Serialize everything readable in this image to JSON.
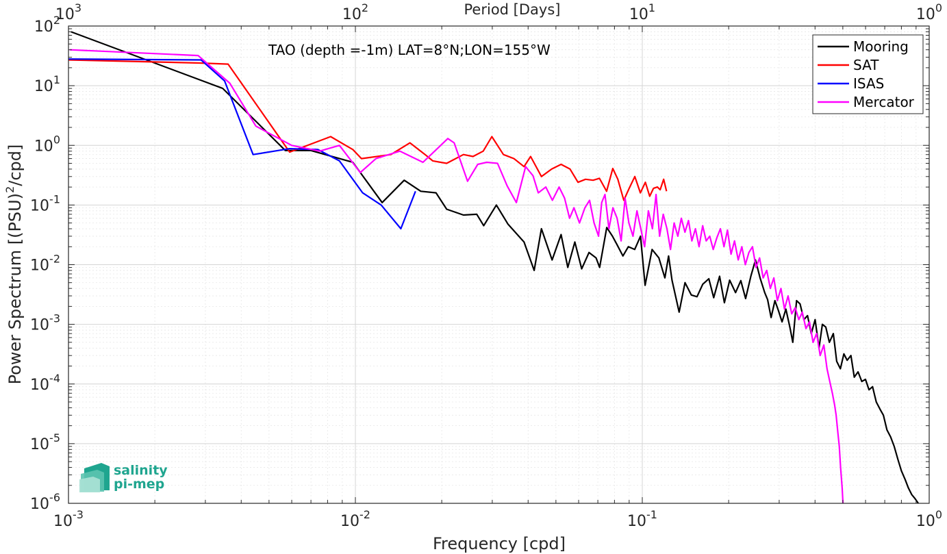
{
  "chart_data": {
    "type": "line",
    "title": "",
    "annotation": "TAO (depth =-1m) LAT=8°N;LON=155°W",
    "xlabel": "Frequency [cpd]",
    "ylabel": "Power Spectrum [(PSU)²/cpd]",
    "top_xlabel": "Period [Days]",
    "x_scale": "log",
    "y_scale": "log",
    "xlim": [
      0.001,
      1
    ],
    "ylim": [
      1e-06,
      100
    ],
    "grid": true,
    "legend_position": "top-right",
    "x_ticks": [
      {
        "base": "10",
        "exp": "-3"
      },
      {
        "base": "10",
        "exp": "-2"
      },
      {
        "base": "10",
        "exp": "-1"
      },
      {
        "base": "10",
        "exp": "0"
      }
    ],
    "y_ticks": [
      {
        "base": "10",
        "exp": "-6"
      },
      {
        "base": "10",
        "exp": "-5"
      },
      {
        "base": "10",
        "exp": "-4"
      },
      {
        "base": "10",
        "exp": "-3"
      },
      {
        "base": "10",
        "exp": "-2"
      },
      {
        "base": "10",
        "exp": "-1"
      },
      {
        "base": "10",
        "exp": "0"
      },
      {
        "base": "10",
        "exp": "1"
      },
      {
        "base": "10",
        "exp": "2"
      }
    ],
    "top_ticks": [
      {
        "base": "10",
        "exp": "3"
      },
      {
        "base": "10",
        "exp": "2"
      },
      {
        "base": "10",
        "exp": "1"
      },
      {
        "base": "10",
        "exp": "0"
      }
    ],
    "series": [
      {
        "name": "Mooring",
        "color": "#000000",
        "points": [
          [
            0.00102,
            80
          ],
          [
            0.00345,
            9
          ],
          [
            0.0057,
            0.82
          ],
          [
            0.007,
            0.82
          ],
          [
            0.0098,
            0.52
          ],
          [
            0.0124,
            0.11
          ],
          [
            0.0148,
            0.26
          ],
          [
            0.0169,
            0.17
          ],
          [
            0.0191,
            0.16
          ],
          [
            0.0208,
            0.085
          ],
          [
            0.0238,
            0.068
          ],
          [
            0.0265,
            0.07
          ],
          [
            0.028,
            0.045
          ],
          [
            0.031,
            0.1
          ],
          [
            0.034,
            0.048
          ],
          [
            0.0387,
            0.024
          ],
          [
            0.042,
            0.008
          ],
          [
            0.0445,
            0.04
          ],
          [
            0.0485,
            0.012
          ],
          [
            0.0521,
            0.032
          ],
          [
            0.055,
            0.009
          ],
          [
            0.0582,
            0.024
          ],
          [
            0.0615,
            0.0085
          ],
          [
            0.0652,
            0.016
          ],
          [
            0.069,
            0.013
          ],
          [
            0.071,
            0.009
          ],
          [
            0.0752,
            0.042
          ],
          [
            0.0787,
            0.03
          ],
          [
            0.0815,
            0.022
          ],
          [
            0.0856,
            0.014
          ],
          [
            0.0894,
            0.02
          ],
          [
            0.0941,
            0.018
          ],
          [
            0.0986,
            0.03
          ],
          [
            0.1023,
            0.0045
          ],
          [
            0.1082,
            0.018
          ],
          [
            0.1142,
            0.013
          ],
          [
            0.1199,
            0.006
          ],
          [
            0.1235,
            0.014
          ],
          [
            0.1269,
            0.0055
          ],
          [
            0.1344,
            0.0016
          ],
          [
            0.1409,
            0.005
          ],
          [
            0.1482,
            0.0031
          ],
          [
            0.1551,
            0.0029
          ],
          [
            0.1625,
            0.0047
          ],
          [
            0.1706,
            0.0058
          ],
          [
            0.1774,
            0.0028
          ],
          [
            0.186,
            0.0064
          ],
          [
            0.1933,
            0.0023
          ],
          [
            0.2016,
            0.0055
          ],
          [
            0.2114,
            0.0034
          ],
          [
            0.2205,
            0.0054
          ],
          [
            0.2291,
            0.0027
          ],
          [
            0.2392,
            0.0065
          ],
          [
            0.248,
            0.012
          ],
          [
            0.2573,
            0.006
          ],
          [
            0.2672,
            0.0034
          ],
          [
            0.2734,
            0.0026
          ],
          [
            0.2812,
            0.0013
          ],
          [
            0.29,
            0.0025
          ],
          [
            0.2982,
            0.0017
          ],
          [
            0.307,
            0.0011
          ],
          [
            0.3165,
            0.0018
          ],
          [
            0.3268,
            0.0009
          ],
          [
            0.3347,
            0.0005
          ],
          [
            0.345,
            0.0025
          ],
          [
            0.3548,
            0.0022
          ],
          [
            0.3658,
            0.0012
          ],
          [
            0.3767,
            0.0014
          ],
          [
            0.3882,
            0.0007
          ],
          [
            0.4003,
            0.0012
          ],
          [
            0.413,
            0.0004
          ],
          [
            0.4244,
            0.001
          ],
          [
            0.4362,
            0.0009
          ],
          [
            0.4488,
            0.0005
          ],
          [
            0.4633,
            0.0007
          ],
          [
            0.4759,
            0.00024
          ],
          [
            0.4902,
            0.00018
          ],
          [
            0.5041,
            0.00032
          ],
          [
            0.5176,
            0.00025
          ],
          [
            0.5335,
            0.0003
          ],
          [
            0.5483,
            0.00013
          ],
          [
            0.5649,
            0.00016
          ],
          [
            0.5822,
            0.00011
          ],
          [
            0.5995,
            0.00012
          ],
          [
            0.6168,
            8e-05
          ],
          [
            0.6349,
            9e-05
          ],
          [
            0.6538,
            5e-05
          ],
          [
            0.6735,
            3.8e-05
          ],
          [
            0.6925,
            3e-05
          ],
          [
            0.7125,
            1.7e-05
          ],
          [
            0.7334,
            1.3e-05
          ],
          [
            0.7551,
            9e-06
          ],
          [
            0.7773,
            5.5e-06
          ],
          [
            0.8,
            3.5e-06
          ],
          [
            0.8244,
            2.5e-06
          ],
          [
            0.8466,
            1.8e-06
          ],
          [
            0.8693,
            1.4e-06
          ],
          [
            0.8926,
            1.2e-06
          ],
          [
            0.9163,
            1e-06
          ]
        ]
      },
      {
        "name": "SAT",
        "color": "#ff0000",
        "points": [
          [
            0.001,
            27
          ],
          [
            0.00285,
            24
          ],
          [
            0.0036,
            23
          ],
          [
            0.0059,
            0.77
          ],
          [
            0.0082,
            1.4
          ],
          [
            0.0098,
            0.85
          ],
          [
            0.0105,
            0.6
          ],
          [
            0.0133,
            0.7
          ],
          [
            0.0155,
            1.1
          ],
          [
            0.0175,
            0.7
          ],
          [
            0.0186,
            0.55
          ],
          [
            0.0208,
            0.5
          ],
          [
            0.0238,
            0.7
          ],
          [
            0.0257,
            0.65
          ],
          [
            0.0279,
            0.8
          ],
          [
            0.0299,
            1.4
          ],
          [
            0.0328,
            0.7
          ],
          [
            0.0357,
            0.6
          ],
          [
            0.0387,
            0.44
          ],
          [
            0.0408,
            0.65
          ],
          [
            0.0445,
            0.3
          ],
          [
            0.0483,
            0.4
          ],
          [
            0.0521,
            0.48
          ],
          [
            0.056,
            0.4
          ],
          [
            0.0597,
            0.24
          ],
          [
            0.0634,
            0.27
          ],
          [
            0.0674,
            0.26
          ],
          [
            0.0709,
            0.28
          ],
          [
            0.0751,
            0.17
          ],
          [
            0.0789,
            0.41
          ],
          [
            0.0822,
            0.27
          ],
          [
            0.0862,
            0.12
          ],
          [
            0.09,
            0.19
          ],
          [
            0.0942,
            0.3
          ],
          [
            0.0985,
            0.16
          ],
          [
            0.1025,
            0.24
          ],
          [
            0.1061,
            0.14
          ],
          [
            0.1094,
            0.19
          ],
          [
            0.1129,
            0.2
          ],
          [
            0.1154,
            0.18
          ],
          [
            0.1187,
            0.27
          ],
          [
            0.1215,
            0.17
          ]
        ]
      },
      {
        "name": "ISAS",
        "color": "#0000ff",
        "points": [
          [
            0.001,
            28
          ],
          [
            0.0029,
            27
          ],
          [
            0.0035,
            12
          ],
          [
            0.0044,
            0.7
          ],
          [
            0.0059,
            0.88
          ],
          [
            0.0074,
            0.85
          ],
          [
            0.0088,
            0.55
          ],
          [
            0.0106,
            0.16
          ],
          [
            0.0123,
            0.1
          ],
          [
            0.0144,
            0.04
          ],
          [
            0.0162,
            0.17
          ]
        ]
      },
      {
        "name": "Mercator",
        "color": "#ff00ff",
        "points": [
          [
            0.00101,
            40
          ],
          [
            0.00283,
            32
          ],
          [
            0.00365,
            11
          ],
          [
            0.0045,
            2.1
          ],
          [
            0.006,
            1
          ],
          [
            0.0075,
            0.8
          ],
          [
            0.0088,
            1
          ],
          [
            0.0104,
            0.35
          ],
          [
            0.0118,
            0.6
          ],
          [
            0.0143,
            0.8
          ],
          [
            0.0172,
            0.52
          ],
          [
            0.0189,
            0.8
          ],
          [
            0.021,
            1.3
          ],
          [
            0.0221,
            1.1
          ],
          [
            0.0246,
            0.25
          ],
          [
            0.0267,
            0.48
          ],
          [
            0.0287,
            0.52
          ],
          [
            0.0313,
            0.5
          ],
          [
            0.0338,
            0.21
          ],
          [
            0.0364,
            0.11
          ],
          [
            0.0392,
            0.44
          ],
          [
            0.0416,
            0.31
          ],
          [
            0.0434,
            0.16
          ],
          [
            0.0461,
            0.2
          ],
          [
            0.0486,
            0.12
          ],
          [
            0.0513,
            0.2
          ],
          [
            0.0536,
            0.13
          ],
          [
            0.0558,
            0.06
          ],
          [
            0.0578,
            0.09
          ],
          [
            0.0604,
            0.05
          ],
          [
            0.0631,
            0.09
          ],
          [
            0.0655,
            0.12
          ],
          [
            0.0679,
            0.05
          ],
          [
            0.0704,
            0.03
          ],
          [
            0.0722,
            0.11
          ],
          [
            0.0741,
            0.15
          ],
          [
            0.0765,
            0.04
          ],
          [
            0.079,
            0.09
          ],
          [
            0.0817,
            0.06
          ],
          [
            0.0844,
            0.025
          ],
          [
            0.0871,
            0.13
          ],
          [
            0.0898,
            0.05
          ],
          [
            0.0928,
            0.03
          ],
          [
            0.0958,
            0.08
          ],
          [
            0.0988,
            0.04
          ],
          [
            0.1019,
            0.02
          ],
          [
            0.105,
            0.08
          ],
          [
            0.1085,
            0.04
          ],
          [
            0.1117,
            0.15
          ],
          [
            0.1149,
            0.03
          ],
          [
            0.1183,
            0.07
          ],
          [
            0.1219,
            0.04
          ],
          [
            0.1254,
            0.018
          ],
          [
            0.1291,
            0.05
          ],
          [
            0.133,
            0.03
          ],
          [
            0.1368,
            0.06
          ],
          [
            0.1408,
            0.035
          ],
          [
            0.1449,
            0.055
          ],
          [
            0.1489,
            0.025
          ],
          [
            0.1532,
            0.04
          ],
          [
            0.1577,
            0.02
          ],
          [
            0.1624,
            0.045
          ],
          [
            0.167,
            0.025
          ],
          [
            0.1718,
            0.03
          ],
          [
            0.1767,
            0.018
          ],
          [
            0.1818,
            0.028
          ],
          [
            0.1872,
            0.04
          ],
          [
            0.1926,
            0.02
          ],
          [
            0.1981,
            0.038
          ],
          [
            0.2039,
            0.015
          ],
          [
            0.2097,
            0.025
          ],
          [
            0.216,
            0.012
          ],
          [
            0.2224,
            0.02
          ],
          [
            0.2286,
            0.01
          ],
          [
            0.2353,
            0.016
          ],
          [
            0.2421,
            0.02
          ],
          [
            0.2491,
            0.009
          ],
          [
            0.2564,
            0.013
          ],
          [
            0.2638,
            0.006
          ],
          [
            0.2715,
            0.008
          ],
          [
            0.2795,
            0.004
          ],
          [
            0.2874,
            0.006
          ],
          [
            0.2958,
            0.0025
          ],
          [
            0.3043,
            0.004
          ],
          [
            0.3132,
            0.0018
          ],
          [
            0.3222,
            0.003
          ],
          [
            0.3317,
            0.0015
          ],
          [
            0.3413,
            0.0019
          ],
          [
            0.3512,
            0.0012
          ],
          [
            0.3613,
            0.0016
          ],
          [
            0.3718,
            0.00085
          ],
          [
            0.3826,
            0.0011
          ],
          [
            0.3937,
            0.0005
          ],
          [
            0.4052,
            0.0007
          ],
          [
            0.4169,
            0.0003
          ],
          [
            0.4292,
            0.00045
          ],
          [
            0.4405,
            0.00018
          ],
          [
            0.4502,
            0.00011
          ],
          [
            0.4598,
            7e-05
          ],
          [
            0.468,
            4.5e-05
          ],
          [
            0.4739,
            3e-05
          ],
          [
            0.4807,
            1.5e-05
          ],
          [
            0.4861,
            9e-06
          ],
          [
            0.4912,
            4e-06
          ],
          [
            0.4974,
            1.8e-06
          ],
          [
            0.5006,
            1e-06
          ]
        ]
      }
    ]
  },
  "legend": [
    {
      "name": "Mooring",
      "color": "#000000"
    },
    {
      "name": "SAT",
      "color": "#ff0000"
    },
    {
      "name": "ISAS",
      "color": "#0000ff"
    },
    {
      "name": "Mercator",
      "color": "#ff00ff"
    }
  ],
  "logo": {
    "line1": "salinity",
    "line2": "pi-mep",
    "icon": "salinity-pimep-logo-icon",
    "color": "#1fa58f"
  }
}
